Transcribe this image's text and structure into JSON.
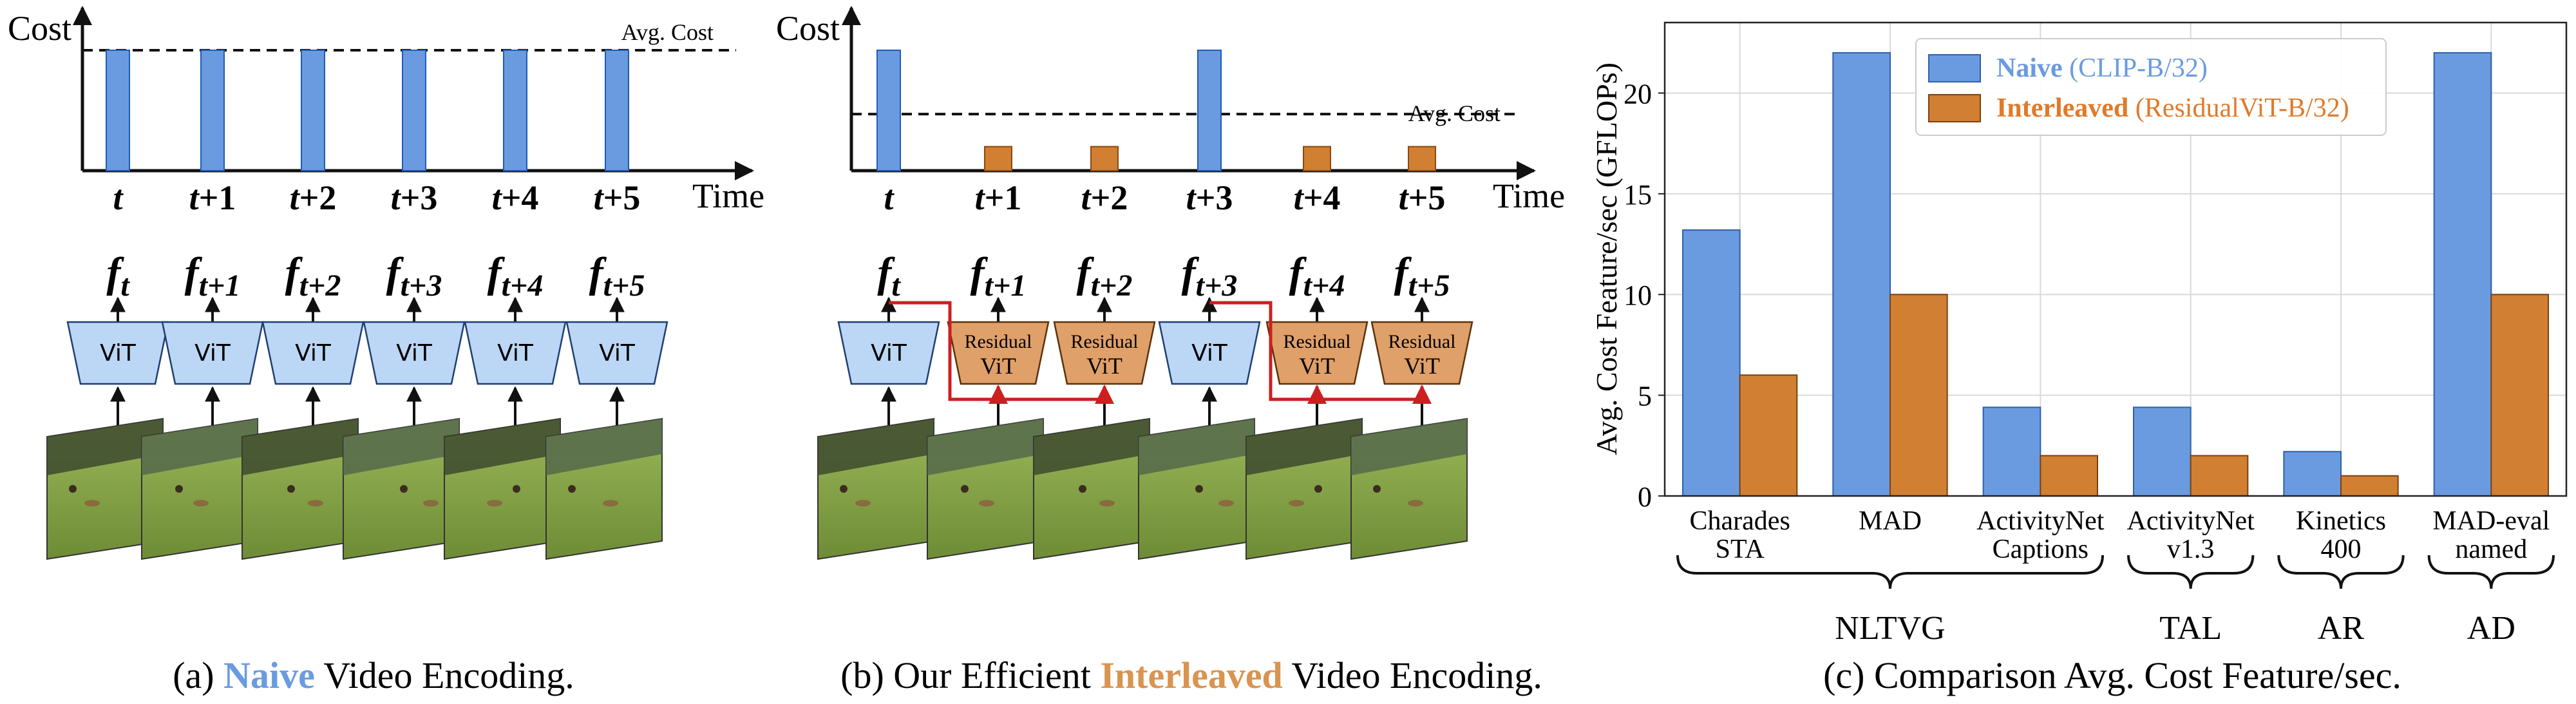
{
  "colors": {
    "naive_blue": "#6a9be0",
    "interleaved_orange": "#d17f32",
    "vit_fill": "#bcd6f5",
    "residual_fill": "#e0a06a",
    "arrow_red": "#cc1f1f",
    "grass": "#86a64a"
  },
  "panel_a": {
    "y_label": "Cost",
    "avg_label": "Avg. Cost",
    "time_label": "Time",
    "time_ticks": [
      "t",
      "t+1",
      "t+2",
      "t+3",
      "t+4",
      "t+5"
    ],
    "bar_heights_relative": [
      1,
      1,
      1,
      1,
      1,
      1
    ],
    "avg_relative": 1.0,
    "features": [
      {
        "base": "f",
        "sub": "t"
      },
      {
        "base": "f",
        "sub": "t+1"
      },
      {
        "base": "f",
        "sub": "t+2"
      },
      {
        "base": "f",
        "sub": "t+3"
      },
      {
        "base": "f",
        "sub": "t+4"
      },
      {
        "base": "f",
        "sub": "t+5"
      }
    ],
    "encoders": [
      "ViT",
      "ViT",
      "ViT",
      "ViT",
      "ViT",
      "ViT"
    ],
    "caption_prefix": "(a) ",
    "caption_highlight": "Naive",
    "caption_suffix": " Video Encoding."
  },
  "panel_b": {
    "y_label": "Cost",
    "avg_label": "Avg. Cost",
    "time_label": "Time",
    "time_ticks": [
      "t",
      "t+1",
      "t+2",
      "t+3",
      "t+4",
      "t+5"
    ],
    "bar_kinds": [
      "full",
      "residual",
      "residual",
      "full",
      "residual",
      "residual"
    ],
    "bar_heights_relative": [
      1,
      0.2,
      0.2,
      1,
      0.2,
      0.2
    ],
    "avg_relative": 0.47,
    "features": [
      {
        "base": "f",
        "sub": "t"
      },
      {
        "base": "f",
        "sub": "t+1"
      },
      {
        "base": "f",
        "sub": "t+2"
      },
      {
        "base": "f",
        "sub": "t+3"
      },
      {
        "base": "f",
        "sub": "t+4"
      },
      {
        "base": "f",
        "sub": "t+5"
      }
    ],
    "encoders": [
      {
        "kind": "full",
        "lines": [
          "ViT"
        ]
      },
      {
        "kind": "residual",
        "lines": [
          "Residual",
          "ViT"
        ]
      },
      {
        "kind": "residual",
        "lines": [
          "Residual",
          "ViT"
        ]
      },
      {
        "kind": "full",
        "lines": [
          "ViT"
        ]
      },
      {
        "kind": "residual",
        "lines": [
          "Residual",
          "ViT"
        ]
      },
      {
        "kind": "residual",
        "lines": [
          "Residual",
          "ViT"
        ]
      }
    ],
    "caption_prefix": "(b) Our Efficient ",
    "caption_highlight": "Interleaved",
    "caption_suffix": " Video Encoding."
  },
  "chart_data": {
    "type": "bar",
    "ylabel": "Avg. Cost Feature/sec (GFLOPs)",
    "ylim": [
      0,
      23.5
    ],
    "yticks": [
      0,
      5,
      10,
      15,
      20
    ],
    "grid": true,
    "legend_position": "top",
    "categories": [
      [
        "Charades",
        "STA"
      ],
      [
        "MAD"
      ],
      [
        "ActivityNet",
        "Captions"
      ],
      [
        "ActivityNet",
        "v1.3"
      ],
      [
        "Kinetics",
        "400"
      ],
      [
        "MAD-eval",
        "named"
      ]
    ],
    "series": [
      {
        "name": "Naive",
        "detail": "(CLIP-B/32)",
        "color": "#6a9be0",
        "values": [
          13.2,
          22.0,
          4.4,
          4.4,
          2.2,
          22.0
        ]
      },
      {
        "name": "Interleaved",
        "detail": "(ResidualViT-B/32)",
        "color": "#d17f32",
        "values": [
          6.0,
          10.0,
          2.0,
          2.0,
          1.0,
          10.0
        ]
      }
    ],
    "groups": [
      {
        "label": "NLTVG",
        "from": 0,
        "to": 2
      },
      {
        "label": "TAL",
        "from": 3,
        "to": 3
      },
      {
        "label": "AR",
        "from": 4,
        "to": 4
      },
      {
        "label": "AD",
        "from": 5,
        "to": 5
      }
    ],
    "caption": "(c) Comparison Avg. Cost Feature/sec."
  }
}
